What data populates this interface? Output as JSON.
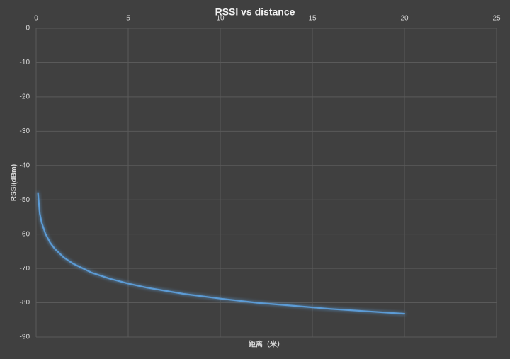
{
  "chart_data": {
    "type": "line",
    "title": "RSSI vs distance",
    "x_label": "距离（米）",
    "y_label": "RSSI(dBm)",
    "x": [
      0.1,
      0.2,
      0.3,
      0.5,
      0.75,
      1,
      1.5,
      2,
      3,
      4,
      5,
      6,
      8,
      10,
      12,
      14,
      16,
      18,
      20
    ],
    "values": [
      -48,
      -54,
      -56.6,
      -59.8,
      -62.4,
      -64.2,
      -66.8,
      -68.6,
      -71.2,
      -73,
      -74.4,
      -75.6,
      -77.4,
      -78.8,
      -80,
      -80.9,
      -81.8,
      -82.5,
      -83.2
    ],
    "color": "#5b9bd5",
    "xlim": [
      0,
      25
    ],
    "xticks": [
      0,
      5,
      10,
      15,
      20,
      25
    ],
    "ylim": [
      -90,
      0
    ],
    "yticks": [
      0,
      -10,
      -20,
      -30,
      -40,
      -50,
      -60,
      -70,
      -80,
      -90
    ],
    "grid": true
  }
}
